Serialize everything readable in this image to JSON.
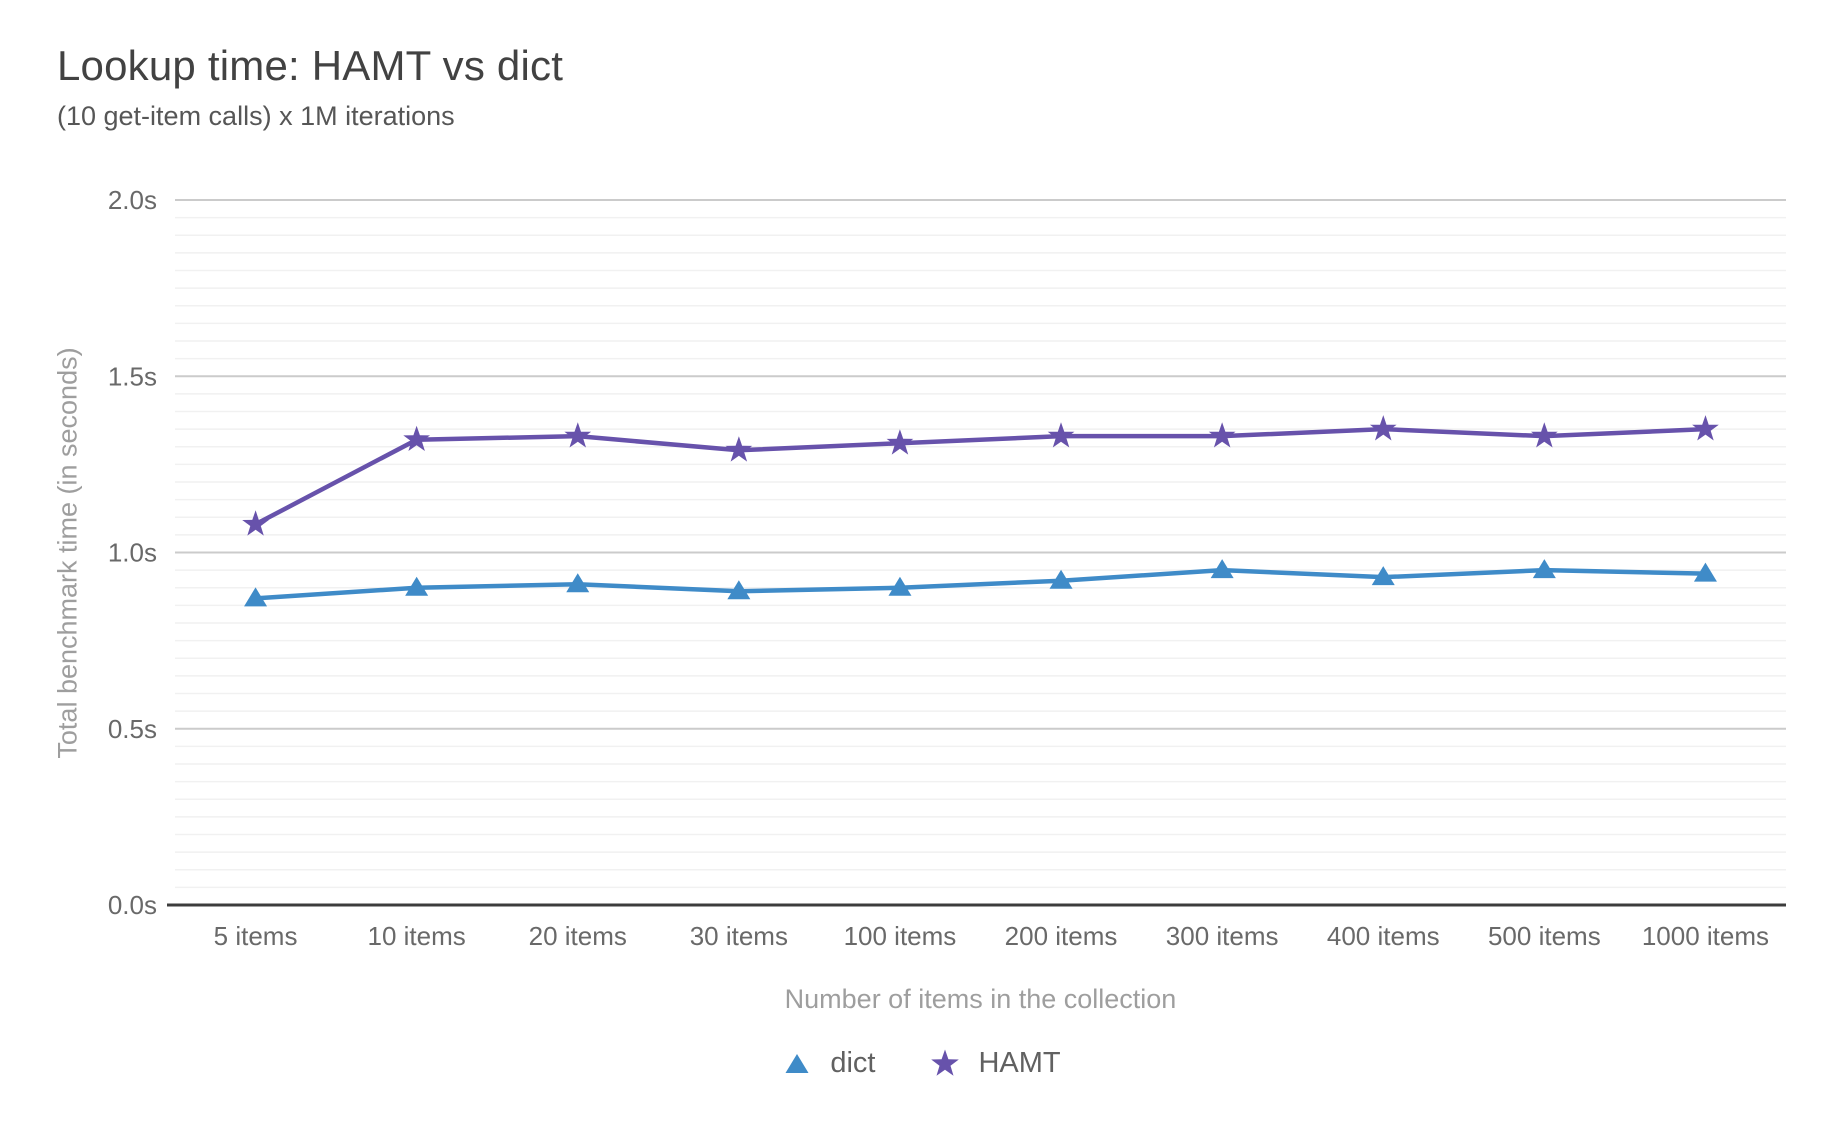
{
  "chart_data": {
    "type": "line",
    "title": "Lookup time: HAMT vs dict",
    "subtitle": "(10 get-item calls) x 1M iterations",
    "xlabel": "Number of items in the collection",
    "ylabel": "Total benchmark time (in seconds)",
    "categories": [
      "5 items",
      "10 items",
      "20 items",
      "30 items",
      "100 items",
      "200 items",
      "300 items",
      "400 items",
      "500 items",
      "1000 items"
    ],
    "series": [
      {
        "name": "dict",
        "marker": "triangle",
        "color": "#3f8bc8",
        "values": [
          0.87,
          0.9,
          0.91,
          0.89,
          0.9,
          0.92,
          0.95,
          0.93,
          0.95,
          0.94
        ]
      },
      {
        "name": "HAMT",
        "marker": "star",
        "color": "#6752ab",
        "values": [
          1.08,
          1.32,
          1.33,
          1.29,
          1.31,
          1.33,
          1.33,
          1.35,
          1.33,
          1.35
        ]
      }
    ],
    "ylim": [
      0,
      2
    ],
    "y_ticks": [
      {
        "v": 0,
        "label": "0.0s"
      },
      {
        "v": 0.5,
        "label": "0.5s"
      },
      {
        "v": 1,
        "label": "1.0s"
      },
      {
        "v": 1.5,
        "label": "1.5s"
      },
      {
        "v": 2,
        "label": "2.0s"
      }
    ],
    "y_minor_step": 0.05,
    "grid": true,
    "legend_position": "bottom"
  },
  "colors": {
    "title": "#424242",
    "subtitle": "#565656",
    "tick_label": "#696969",
    "axis_title": "#9e9e9e",
    "legend_label": "#616161",
    "grid_major": "#cbcbcb",
    "grid_minor": "#f1f1f1",
    "axis_line": "#3c3c3c"
  }
}
